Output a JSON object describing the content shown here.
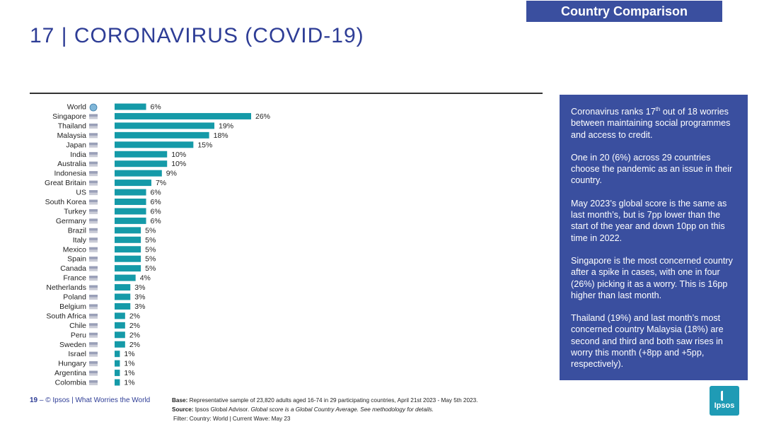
{
  "header": {
    "tag": "Country Comparison",
    "title": "17 | CORONAVIRUS (COVID-19)"
  },
  "colors": {
    "bar": "#159aa8",
    "panel": "#3a4f9f",
    "title": "#2e3d96"
  },
  "chart_data": {
    "type": "bar",
    "orientation": "horizontal",
    "categories": [
      "World",
      "Singapore",
      "Thailand",
      "Malaysia",
      "Japan",
      "India",
      "Australia",
      "Indonesia",
      "Great Britain",
      "US",
      "South Korea",
      "Turkey",
      "Germany",
      "Brazil",
      "Italy",
      "Mexico",
      "Spain",
      "Canada",
      "France",
      "Netherlands",
      "Poland",
      "Belgium",
      "South Africa",
      "Chile",
      "Peru",
      "Sweden",
      "Israel",
      "Hungary",
      "Argentina",
      "Colombia"
    ],
    "values": [
      6,
      26,
      19,
      18,
      15,
      10,
      10,
      9,
      7,
      6,
      6,
      6,
      6,
      5,
      5,
      5,
      5,
      5,
      4,
      3,
      3,
      3,
      2,
      2,
      2,
      2,
      1,
      1,
      1,
      1
    ],
    "value_labels": [
      "6%",
      "26%",
      "19%",
      "18%",
      "15%",
      "10%",
      "10%",
      "9%",
      "7%",
      "6%",
      "6%",
      "6%",
      "6%",
      "5%",
      "5%",
      "5%",
      "5%",
      "5%",
      "4%",
      "3%",
      "3%",
      "3%",
      "2%",
      "2%",
      "2%",
      "2%",
      "1%",
      "1%",
      "1%",
      "1%"
    ],
    "flag_icons": [
      "globe-icon",
      "flag-singapore-icon",
      "flag-thailand-icon",
      "flag-malaysia-icon",
      "flag-japan-icon",
      "flag-india-icon",
      "flag-australia-icon",
      "flag-indonesia-icon",
      "flag-great-britain-icon",
      "flag-us-icon",
      "flag-south-korea-icon",
      "flag-turkey-icon",
      "flag-germany-icon",
      "flag-brazil-icon",
      "flag-italy-icon",
      "flag-mexico-icon",
      "flag-spain-icon",
      "flag-canada-icon",
      "flag-france-icon",
      "flag-netherlands-icon",
      "flag-poland-icon",
      "flag-belgium-icon",
      "flag-south-africa-icon",
      "flag-chile-icon",
      "flag-peru-icon",
      "flag-sweden-icon",
      "flag-israel-icon",
      "flag-hungary-icon",
      "flag-argentina-icon",
      "flag-colombia-icon"
    ],
    "xlim": [
      0,
      26
    ],
    "grid": false,
    "legend": "none"
  },
  "panel": {
    "p1_a": "Coronavirus ranks 17",
    "p1_sup": "th",
    "p1_b": " out of 18 worries between maintaining social programmes and access to credit.",
    "p2": "One in 20 (6%) across 29 countries choose the pandemic as an issue in their country.",
    "p3": "May 2023’s global score is the same as last month’s, but is 7pp lower than the start of the year and down 10pp on this time in 2022.",
    "p4": "Singapore is the most concerned country after a spike in cases, with one in four (26%) picking it as a worry. This is 16pp higher than last month.",
    "p5": "Thailand (19%) and last month’s most concerned country Malaysia (18%) are second and third and both saw rises in worry this month (+8pp and +5pp, respectively)."
  },
  "footer": {
    "page_number": "19",
    "dash": " – ",
    "source_brand": "© Ipsos | What Worries the World",
    "base_label": "Base:",
    "base_text": " Representative sample of 23,820 adults aged 16-74 in 29 participating countries, April 21st 2023 - May 5th 2023.",
    "source_label": "Source:",
    "source_text": " Ipsos Global Advisor. ",
    "source_italic": "Global score is a Global Country Average. See methodology for details.",
    "filter": "Filter: Country: World | Current Wave: May 23"
  },
  "logo": {
    "text": "Ipsos"
  }
}
